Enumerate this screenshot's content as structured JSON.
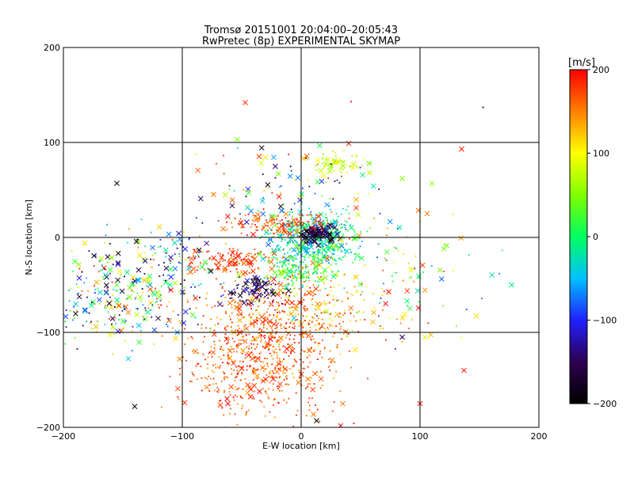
{
  "chart_data": {
    "type": "scatter",
    "title": "Tromsø 20151001 20:04:00–20:05:43",
    "subtitle": "RwPretec (8p) EXPERIMENTAL SKYMAP",
    "xlabel": "E-W location [km]",
    "ylabel": "N-S location [km]",
    "xlim": [
      -200,
      200
    ],
    "ylim": [
      -200,
      200
    ],
    "xticks": [
      -200,
      -100,
      0,
      100,
      200
    ],
    "yticks": [
      -200,
      -100,
      0,
      100,
      200
    ],
    "grid": true,
    "colorbar": {
      "label": "[m/s]",
      "min": -200,
      "max": 200,
      "ticks": [
        200,
        100,
        0,
        -100,
        -200
      ],
      "colormap": [
        "#000000",
        "#2e0050",
        "#2020ff",
        "#00c0ff",
        "#00ff60",
        "#80ff00",
        "#ffff00",
        "#ff8000",
        "#ff0000"
      ]
    },
    "markers": [
      "dot",
      "x"
    ],
    "clusters": [
      {
        "name": "southern red cloud",
        "cx": -30,
        "cy": -110,
        "rx": 45,
        "ry": 40,
        "n": 650,
        "vmin": 130,
        "vmax": 200,
        "xfrac": 0.08
      },
      {
        "name": "southern red extension",
        "cx": -40,
        "cy": -160,
        "rx": 45,
        "ry": 30,
        "n": 140,
        "vmin": 140,
        "vmax": 200,
        "xfrac": 0.12
      },
      {
        "name": "red band near origin",
        "cx": -55,
        "cy": -25,
        "rx": 30,
        "ry": 10,
        "n": 140,
        "vmin": 150,
        "vmax": 200,
        "xfrac": 0.15
      },
      {
        "name": "mixed region south-east",
        "cx": 10,
        "cy": -70,
        "rx": 40,
        "ry": 30,
        "n": 220,
        "vmin": 60,
        "vmax": 200,
        "xfrac": 0.1
      },
      {
        "name": "central cyan-green cluster",
        "cx": 10,
        "cy": 0,
        "rx": 25,
        "ry": 20,
        "n": 520,
        "vmin": -80,
        "vmax": 40,
        "xfrac": 0.12
      },
      {
        "name": "central core dark",
        "cx": 15,
        "cy": 5,
        "rx": 10,
        "ry": 8,
        "n": 90,
        "vmin": -200,
        "vmax": -130,
        "xfrac": 0.5
      },
      {
        "name": "south green spread",
        "cx": -5,
        "cy": -35,
        "rx": 25,
        "ry": 15,
        "n": 180,
        "vmin": -40,
        "vmax": 80,
        "xfrac": 0.15
      },
      {
        "name": "dark blue pocket",
        "cx": -40,
        "cy": -55,
        "rx": 18,
        "ry": 10,
        "n": 90,
        "vmin": -200,
        "vmax": -100,
        "xfrac": 0.3
      },
      {
        "name": "red band upper",
        "cx": -20,
        "cy": 15,
        "rx": 35,
        "ry": 8,
        "n": 130,
        "vmin": 140,
        "vmax": 200,
        "xfrac": 0.25
      },
      {
        "name": "northern green patch",
        "cx": 30,
        "cy": 78,
        "rx": 15,
        "ry": 8,
        "n": 70,
        "vmin": 40,
        "vmax": 110,
        "xfrac": 0.2
      },
      {
        "name": "western scatter",
        "cx": -165,
        "cy": -60,
        "rx": 35,
        "ry": 40,
        "n": 220,
        "vmin": -200,
        "vmax": 200,
        "xfrac": 0.25
      },
      {
        "name": "eastern scatter",
        "cx": 80,
        "cy": -40,
        "rx": 50,
        "ry": 50,
        "n": 120,
        "vmin": -100,
        "vmax": 200,
        "xfrac": 0.3
      },
      {
        "name": "west-central scatter",
        "cx": -110,
        "cy": -40,
        "rx": 30,
        "ry": 40,
        "n": 160,
        "vmin": -200,
        "vmax": 200,
        "xfrac": 0.3
      },
      {
        "name": "north sparse",
        "cx": -10,
        "cy": 50,
        "rx": 50,
        "ry": 35,
        "n": 110,
        "vmin": -200,
        "vmax": 200,
        "xfrac": 0.35
      }
    ],
    "highlighted_points": [
      {
        "x": -47,
        "y": 142,
        "v": 180,
        "m": "x"
      },
      {
        "x": 42,
        "y": 143,
        "v": 200,
        "m": "dot"
      },
      {
        "x": 135,
        "y": 93,
        "v": 190,
        "m": "x"
      },
      {
        "x": 153,
        "y": 137,
        "v": -200,
        "m": "dot"
      },
      {
        "x": 40,
        "y": 99,
        "v": 190,
        "m": "x"
      },
      {
        "x": -155,
        "y": 57,
        "v": -200,
        "m": "x"
      },
      {
        "x": 110,
        "y": 57,
        "v": 60,
        "m": "x"
      },
      {
        "x": 177,
        "y": -50,
        "v": -10,
        "m": "x"
      },
      {
        "x": 100,
        "y": -175,
        "v": 190,
        "m": "x"
      },
      {
        "x": 13,
        "y": -193,
        "v": -200,
        "m": "x"
      },
      {
        "x": -140,
        "y": -178,
        "v": -200,
        "m": "x"
      },
      {
        "x": -98,
        "y": -174,
        "v": 180,
        "m": "x"
      },
      {
        "x": 85,
        "y": -105,
        "v": -150,
        "m": "x"
      },
      {
        "x": 48,
        "y": 24,
        "v": 70,
        "m": "x"
      },
      {
        "x": 85,
        "y": 62,
        "v": 50,
        "m": "x"
      },
      {
        "x": 137,
        "y": -140,
        "v": 190,
        "m": "x"
      }
    ]
  }
}
